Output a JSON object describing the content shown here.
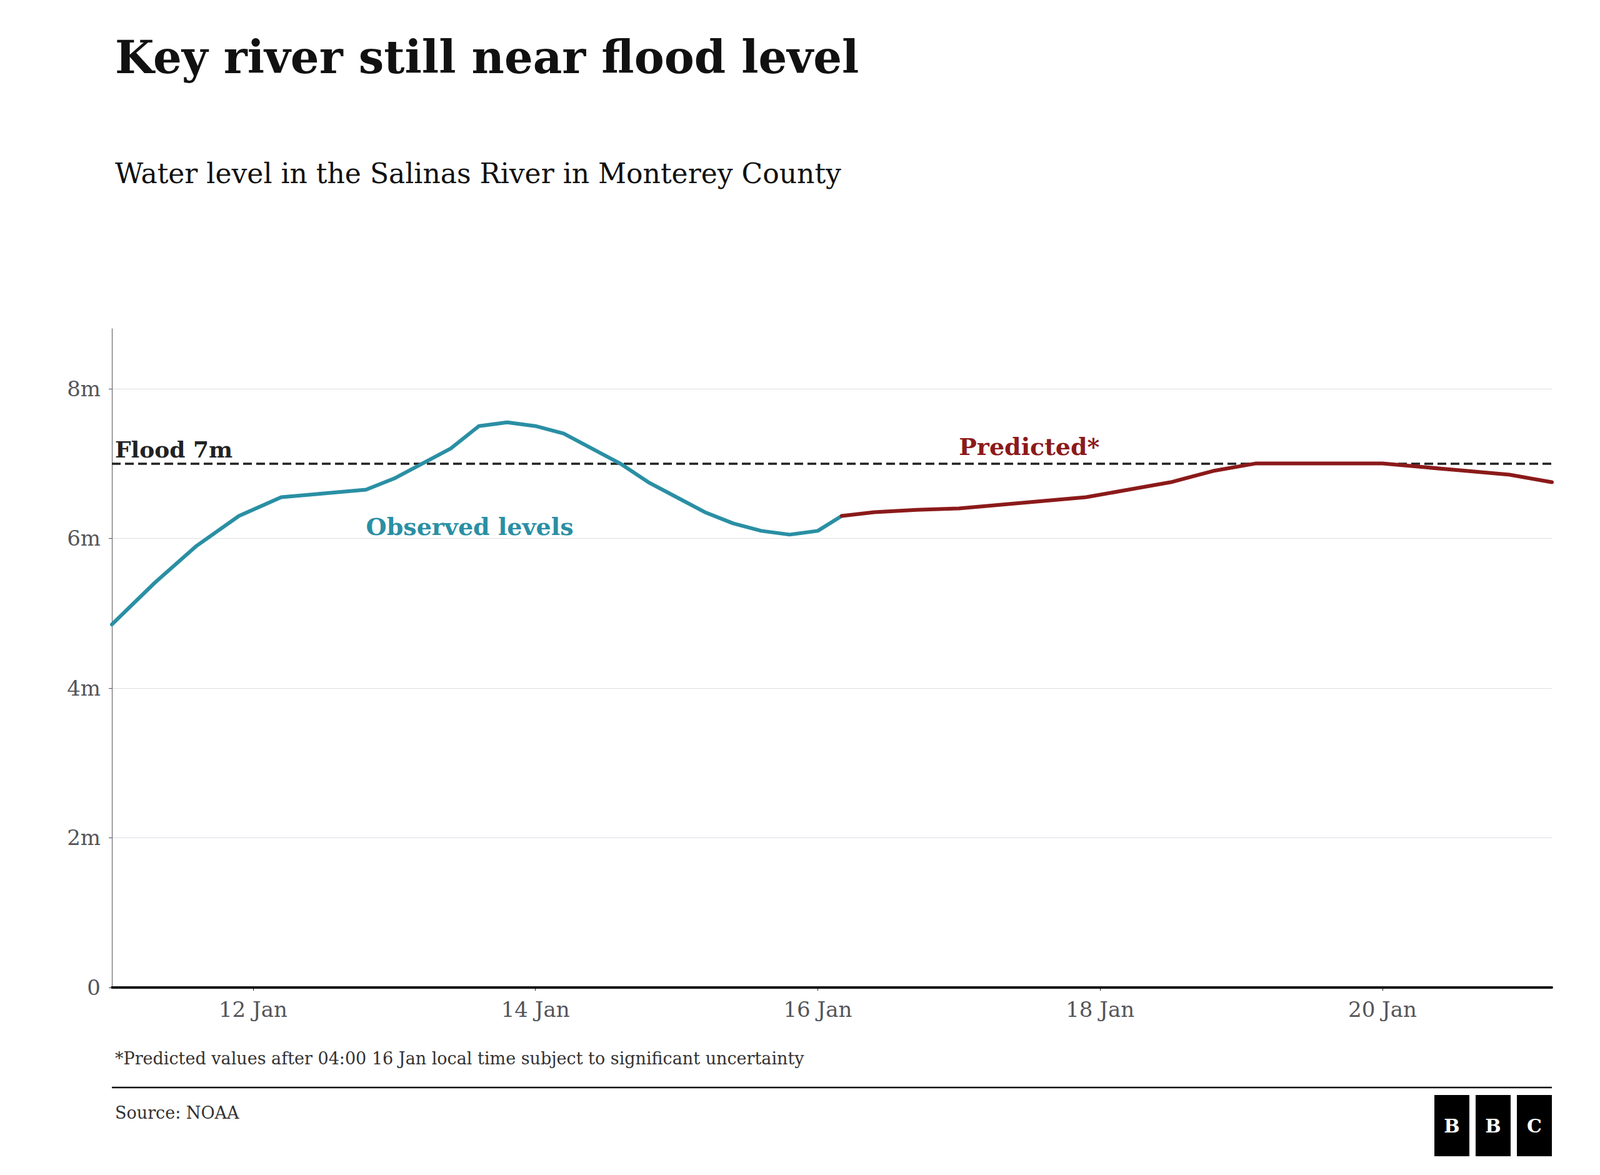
{
  "chart_data": {
    "type": "line",
    "title": "Key river still near flood level",
    "subtitle": "Water level in the Salinas River in Monterey County",
    "footnote": "*Predicted values after 04:00 16 Jan local time subject to significant uncertainty",
    "source": "Source: NOAA",
    "logo": "BBC",
    "series": [
      {
        "name": "Observed levels",
        "color": "#2a8fa4",
        "x": [
          11.0,
          11.3,
          11.6,
          11.9,
          12.2,
          12.5,
          12.8,
          13.0,
          13.2,
          13.4,
          13.6,
          13.8,
          14.0,
          14.2,
          14.4,
          14.6,
          14.8,
          15.0,
          15.2,
          15.4,
          15.6,
          15.8,
          16.0,
          16.17
        ],
        "values": [
          4.85,
          5.4,
          5.9,
          6.3,
          6.55,
          6.6,
          6.65,
          6.8,
          7.0,
          7.2,
          7.5,
          7.55,
          7.5,
          7.4,
          7.2,
          7.0,
          6.75,
          6.55,
          6.35,
          6.2,
          6.1,
          6.05,
          6.1,
          6.3
        ]
      },
      {
        "name": "Predicted*",
        "color": "#8b1a1a",
        "x": [
          16.17,
          16.4,
          16.7,
          17.0,
          17.3,
          17.6,
          17.9,
          18.2,
          18.5,
          18.8,
          19.1,
          19.4,
          19.7,
          20.0,
          20.3,
          20.6,
          20.9,
          21.2
        ],
        "values": [
          6.3,
          6.35,
          6.38,
          6.4,
          6.45,
          6.5,
          6.55,
          6.65,
          6.75,
          6.9,
          7.0,
          7.0,
          7.0,
          7.0,
          6.95,
          6.9,
          6.85,
          6.75
        ]
      }
    ],
    "reference_lines": [
      {
        "value": 7,
        "label": "Flood 7m",
        "color": "#222222",
        "line_style": "dashed"
      }
    ],
    "xlim": [
      11.0,
      21.2
    ],
    "xticks": [
      {
        "value": 12,
        "label": "12 Jan"
      },
      {
        "value": 14,
        "label": "14 Jan"
      },
      {
        "value": 16,
        "label": "16 Jan"
      },
      {
        "value": 18,
        "label": "18 Jan"
      },
      {
        "value": 20,
        "label": "20 Jan"
      }
    ],
    "ylim": [
      0,
      8.8
    ],
    "yticks": [
      0,
      {
        "value": 2,
        "label": "2m"
      },
      {
        "value": 4,
        "label": "4m"
      },
      {
        "value": 6,
        "label": "6m"
      },
      {
        "value": 8,
        "label": "8m"
      }
    ],
    "grid": "y"
  }
}
